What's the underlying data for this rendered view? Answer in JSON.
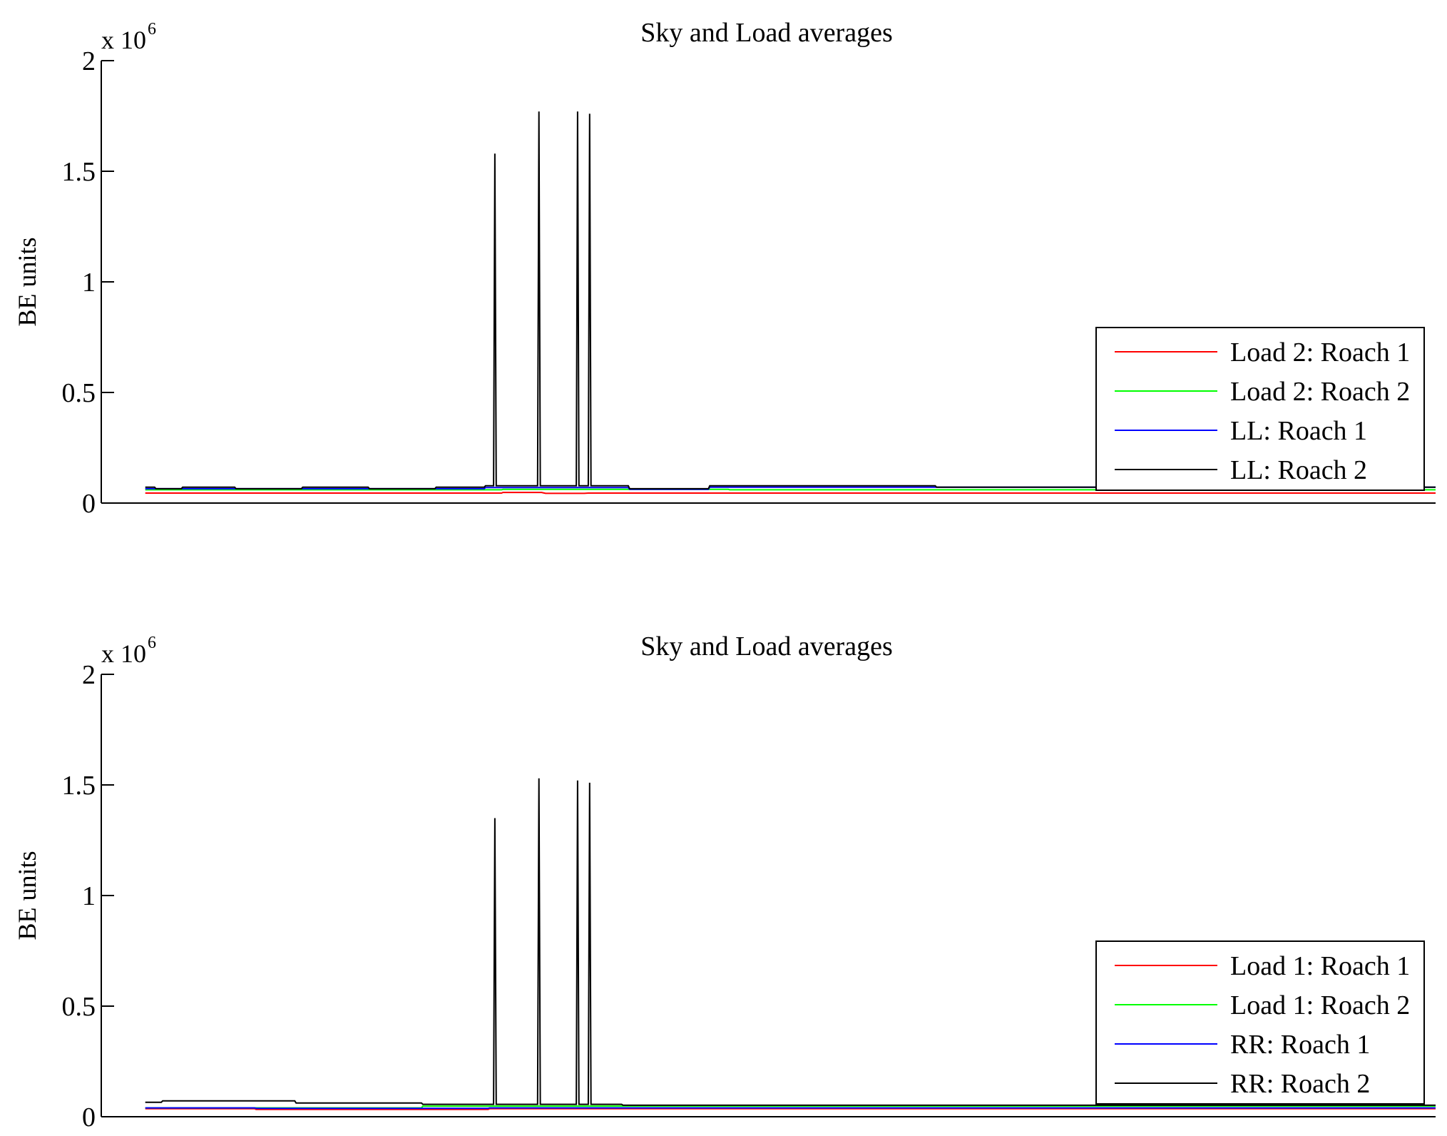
{
  "chart_data": [
    {
      "type": "line",
      "title": "Sky and Load averages",
      "xlabel": "",
      "ylabel": "BE units",
      "y_multiplier": "x 10",
      "y_multiplier_exp": "6",
      "ylim": [
        0,
        2000000
      ],
      "yticks": [
        0,
        500000,
        1000000,
        1500000,
        2000000
      ],
      "ytick_labels": [
        "0",
        "0.5",
        "1",
        "1.5",
        "2"
      ],
      "xlim": [
        0,
        1000
      ],
      "x_ticks_shown": false,
      "grid": false,
      "legend_position": "right",
      "series": [
        {
          "name": "Load 2: Roach 1",
          "color": "#ff0000",
          "x": [
            33,
            300,
            301,
            330,
            333,
            362,
            365,
            590,
            625,
            626,
            1000
          ],
          "values": [
            45000,
            45000,
            48000,
            48000,
            44000,
            44000,
            45000,
            45000,
            45000,
            45000,
            45000
          ]
        },
        {
          "name": "Load 2: Roach 2",
          "color": "#00ff00",
          "x": [
            33,
            300,
            301,
            470,
            471,
            625,
            626,
            1000
          ],
          "values": [
            60000,
            60000,
            62000,
            62000,
            60000,
            60000,
            60000,
            60000
          ]
        },
        {
          "name": "LL: Roach 1",
          "color": "#0000ff",
          "x": [
            33,
            287,
            288,
            395,
            396,
            455,
            456,
            625,
            626,
            1000
          ],
          "values": [
            65000,
            65000,
            70000,
            70000,
            62000,
            62000,
            72000,
            72000,
            72000,
            72000
          ]
        },
        {
          "name": "LL: Roach 2",
          "color": "#000000",
          "x": [
            33,
            40,
            41,
            60,
            61,
            100,
            101,
            150,
            151,
            200,
            201,
            250,
            251,
            287,
            288,
            294,
            295,
            296,
            327,
            328,
            329,
            356,
            357,
            358,
            365,
            366,
            367,
            395,
            396,
            455,
            456,
            625,
            626,
            1000
          ],
          "values": [
            72000,
            72000,
            65000,
            65000,
            72000,
            72000,
            65000,
            65000,
            72000,
            72000,
            65000,
            65000,
            72000,
            72000,
            78000,
            78000,
            1580000,
            78000,
            78000,
            1770000,
            78000,
            78000,
            1770000,
            78000,
            78000,
            1760000,
            78000,
            78000,
            65000,
            65000,
            78000,
            78000,
            72000,
            72000
          ]
        }
      ]
    },
    {
      "type": "line",
      "title": "Sky and Load averages",
      "xlabel": "",
      "ylabel": "BE units",
      "y_multiplier": "x 10",
      "y_multiplier_exp": "6",
      "ylim": [
        0,
        2000000
      ],
      "yticks": [
        0,
        500000,
        1000000,
        1500000,
        2000000
      ],
      "ytick_labels": [
        "0",
        "0.5",
        "1",
        "1.5",
        "2"
      ],
      "xlim": [
        0,
        1000
      ],
      "x_ticks_shown": false,
      "grid": false,
      "legend_position": "right",
      "series": [
        {
          "name": "Load 1: Roach 1",
          "color": "#ff0000",
          "x": [
            33,
            115,
            116,
            290,
            291,
            1000
          ],
          "values": [
            36000,
            36000,
            33000,
            33000,
            36000,
            36000
          ]
        },
        {
          "name": "Load 1: Roach 2",
          "color": "#00ff00",
          "x": [
            33,
            240,
            241,
            1000
          ],
          "values": [
            40000,
            40000,
            48000,
            48000
          ]
        },
        {
          "name": "RR: Roach 1",
          "color": "#0000ff",
          "x": [
            33,
            115,
            116,
            290,
            291,
            1000
          ],
          "values": [
            40000,
            40000,
            38000,
            38000,
            40000,
            40000
          ]
        },
        {
          "name": "RR: Roach 2",
          "color": "#000000",
          "x": [
            33,
            45,
            46,
            145,
            146,
            240,
            241,
            294,
            295,
            296,
            327,
            328,
            329,
            356,
            357,
            358,
            365,
            366,
            367,
            390,
            391,
            1000
          ],
          "values": [
            65000,
            65000,
            72000,
            72000,
            62000,
            62000,
            56000,
            56000,
            1350000,
            56000,
            56000,
            1530000,
            56000,
            56000,
            1520000,
            56000,
            56000,
            1510000,
            56000,
            56000,
            52000,
            52000
          ]
        }
      ]
    }
  ]
}
